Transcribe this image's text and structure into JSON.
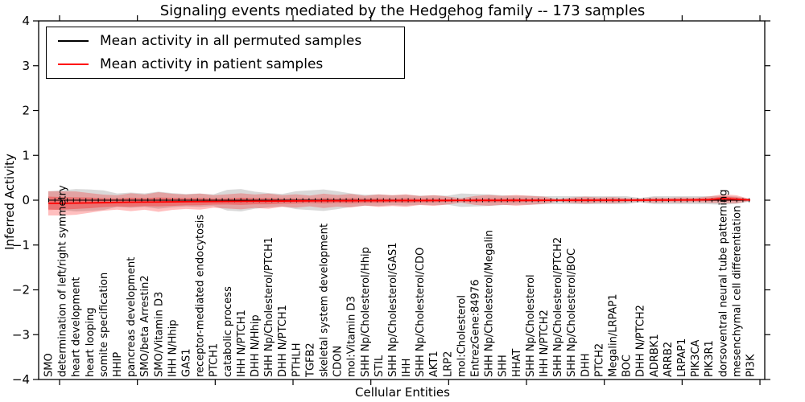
{
  "title": "Signaling events mediated by the Hedgehog family -- 173 samples",
  "legend": {
    "items": [
      {
        "label": "Mean activity in all permuted samples",
        "color": "#000000"
      },
      {
        "label": "Mean activity in patient samples",
        "color": "#ff0000"
      }
    ]
  },
  "chart_data": {
    "type": "line",
    "title": "Signaling events mediated by the Hedgehog family -- 173 samples",
    "xlabel": "Cellular Entities",
    "ylabel": "Inferred Activity",
    "ylim": [
      -4,
      4
    ],
    "yticks": [
      4,
      3,
      2,
      1,
      0,
      -1,
      -2,
      -3,
      -4
    ],
    "grid": false,
    "legend_position": "upper left",
    "categories": [
      "SMO",
      "determination of left/right symmetry",
      "heart development",
      "heart looping",
      "somite specification",
      "HHIP",
      "pancreas development",
      "SMO/beta Arrestin2",
      "SMO/Vitamin D3",
      "IHH N/Hhip",
      "GAS1",
      "receptor-mediated endocytosis",
      "PTCH1",
      "catabolic process",
      "IHH N/PTCH1",
      "DHH N/Hhip",
      "SHH Np/Cholesterol/PTCH1",
      "DHH N/PTCH1",
      "PTHLH",
      "TGFB2",
      "skeletal system development",
      "CDON",
      "mol:Vitamin D3",
      "SHH Np/Cholesterol/Hhip",
      "STIL",
      "SHH Np/Cholesterol/GAS1",
      "IHH",
      "SHH Np/Cholesterol/CDO",
      "AKT1",
      "LRP2",
      "mol:Cholesterol",
      "EntrezGene:84976",
      "SHH Np/Cholesterol/Megalin",
      "SHH",
      "HHAT",
      "SHH Np/Cholesterol",
      "IHH N/PTCH2",
      "SHH Np/Cholesterol/PTCH2",
      "SHH Np/Cholesterol/BOC",
      "DHH",
      "PTCH2",
      "Megalin/LRPAP1",
      "BOC",
      "DHH N/PTCH2",
      "ADRBK1",
      "ARRB2",
      "LRPAP1",
      "PIK3CA",
      "PIK3R1",
      "dorsoventral neural tube patterning",
      "mesenchymal cell differentiation",
      "PI3K"
    ],
    "series": [
      {
        "name": "Mean activity in all permuted samples",
        "color": "#000000",
        "band_color": "#aaaaaa",
        "band_opacity": 0.45,
        "values": [
          0,
          0,
          0,
          0,
          0,
          0,
          0,
          0,
          0,
          0,
          0,
          0,
          0,
          0,
          0,
          0,
          0,
          0,
          0,
          0,
          0,
          0,
          0,
          0,
          0,
          0,
          0,
          0,
          0,
          0,
          0,
          0,
          0,
          0,
          0,
          0,
          0,
          0,
          0,
          0,
          0,
          0,
          0,
          0,
          0,
          0,
          0,
          0,
          0,
          0,
          0,
          0
        ],
        "band": [
          0.2,
          0.22,
          0.25,
          0.24,
          0.22,
          0.15,
          0.17,
          0.15,
          0.19,
          0.16,
          0.14,
          0.15,
          0.13,
          0.23,
          0.25,
          0.19,
          0.16,
          0.14,
          0.2,
          0.22,
          0.24,
          0.2,
          0.15,
          0.12,
          0.13,
          0.11,
          0.12,
          0.1,
          0.11,
          0.1,
          0.15,
          0.14,
          0.13,
          0.11,
          0.1,
          0.1,
          0.09,
          0.09,
          0.09,
          0.09,
          0.09,
          0.09,
          0.09,
          0.05,
          0.09,
          0.09,
          0.09,
          0.09,
          0.09,
          0.1,
          0.08,
          0.03
        ]
      },
      {
        "name": "Mean activity in patient samples",
        "color": "#ff0000",
        "band_color": "#ff0000",
        "band_opacity": 0.25,
        "values": [
          -0.07,
          -0.07,
          -0.065,
          -0.06,
          -0.055,
          -0.05,
          -0.045,
          -0.042,
          -0.04,
          -0.037,
          -0.034,
          -0.031,
          -0.029,
          -0.027,
          -0.025,
          -0.023,
          -0.021,
          -0.019,
          -0.017,
          -0.016,
          -0.014,
          -0.013,
          -0.012,
          -0.011,
          -0.01,
          -0.009,
          -0.008,
          -0.008,
          -0.007,
          -0.006,
          -0.005,
          -0.005,
          -0.004,
          -0.004,
          -0.003,
          -0.003,
          -0.002,
          -0.002,
          -0.001,
          -0.001,
          0,
          0,
          0,
          0.001,
          0.002,
          0.003,
          0.004,
          0.006,
          0.012,
          0.035,
          0.02,
          0.004
        ],
        "band_outer": [
          0.27,
          0.27,
          0.26,
          0.22,
          0.18,
          0.16,
          0.2,
          0.17,
          0.22,
          0.18,
          0.16,
          0.18,
          0.14,
          0.16,
          0.18,
          0.15,
          0.17,
          0.13,
          0.15,
          0.12,
          0.16,
          0.13,
          0.15,
          0.11,
          0.14,
          0.12,
          0.14,
          0.1,
          0.12,
          0.09,
          0.05,
          0.1,
          0.12,
          0.1,
          0.12,
          0.1,
          0.08,
          0.03,
          0.06,
          0.08,
          0.06,
          0.07,
          0.05,
          0.04,
          0.06,
          0.05,
          0.06,
          0.05,
          0.07,
          0.1,
          0.09,
          0.02
        ],
        "band_inner": [
          0.15,
          0.14,
          0.13,
          0.12,
          0.1,
          0.09,
          0.1,
          0.09,
          0.1,
          0.09,
          0.08,
          0.08,
          0.07,
          0.07,
          0.08,
          0.07,
          0.07,
          0.06,
          0.06,
          0.05,
          0.06,
          0.05,
          0.06,
          0.05,
          0.05,
          0.04,
          0.05,
          0.04,
          0.04,
          0.03,
          0.02,
          0.04,
          0.04,
          0.04,
          0.04,
          0.03,
          0.03,
          0.015,
          0.025,
          0.03,
          0.025,
          0.03,
          0.02,
          0.015,
          0.02,
          0.02,
          0.02,
          0.02,
          0.03,
          0.05,
          0.04,
          0.01
        ]
      }
    ]
  }
}
